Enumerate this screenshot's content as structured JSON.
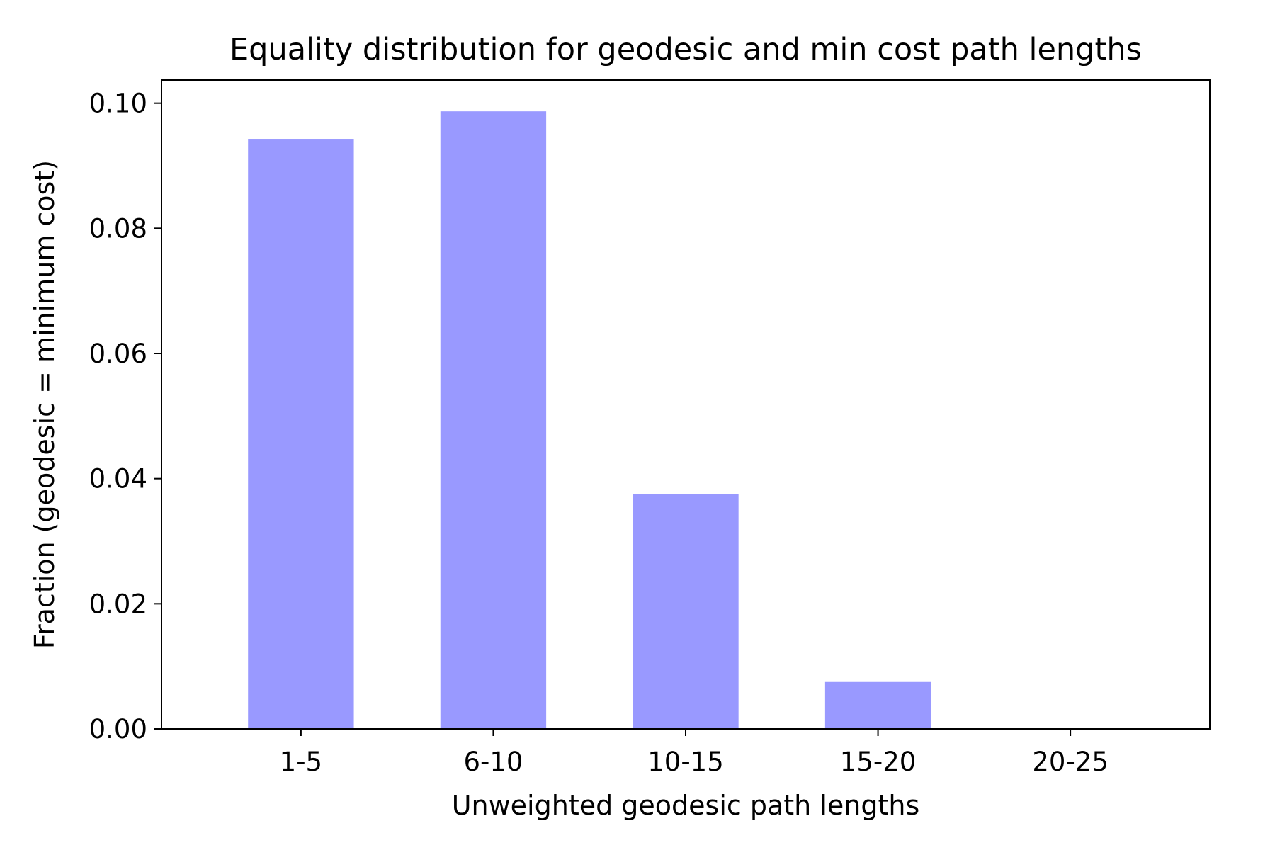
{
  "chart_data": {
    "type": "bar",
    "title": "Equality distribution for geodesic and min cost path lengths",
    "xlabel": "Unweighted geodesic path lengths",
    "ylabel": "Fraction (geodesic = minimum cost)",
    "categories": [
      "1-5",
      "6-10",
      "10-15",
      "15-20",
      "20-25"
    ],
    "values": [
      0.0943,
      0.0987,
      0.0375,
      0.0075,
      0.0
    ],
    "ylim": [
      0,
      0.1037
    ],
    "yticks": [
      0.0,
      0.02,
      0.04,
      0.06,
      0.08,
      0.1
    ],
    "ytick_labels": [
      "0.00",
      "0.02",
      "0.04",
      "0.06",
      "0.08",
      "0.10"
    ],
    "bar_color": "#9999ff",
    "grid": false,
    "legend": "none"
  }
}
